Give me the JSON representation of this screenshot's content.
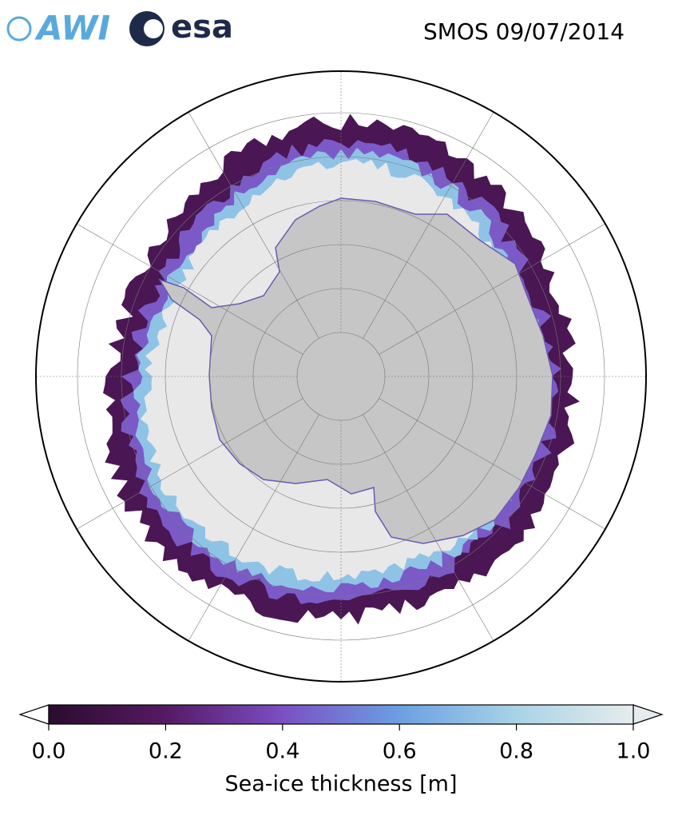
{
  "header": {
    "logo_awi": "AWI",
    "logo_esa": "esa",
    "title": "SMOS 09/07/2014"
  },
  "colorbar": {
    "label": "Sea-ice thickness [m]",
    "lim": [
      0,
      1
    ],
    "ticks": [
      {
        "value": 0,
        "label": "0.0"
      },
      {
        "value": 0.2,
        "label": "0.2"
      },
      {
        "value": 0.4,
        "label": "0.4"
      },
      {
        "value": 0.6,
        "label": "0.6"
      },
      {
        "value": 0.8,
        "label": "0.8"
      },
      {
        "value": 1,
        "label": "1.0"
      }
    ],
    "colors": [
      "#2b0c2e",
      "#551a63",
      "#7b4fc4",
      "#6b9fe2",
      "#a9d3e6",
      "#e6eced"
    ]
  }
}
